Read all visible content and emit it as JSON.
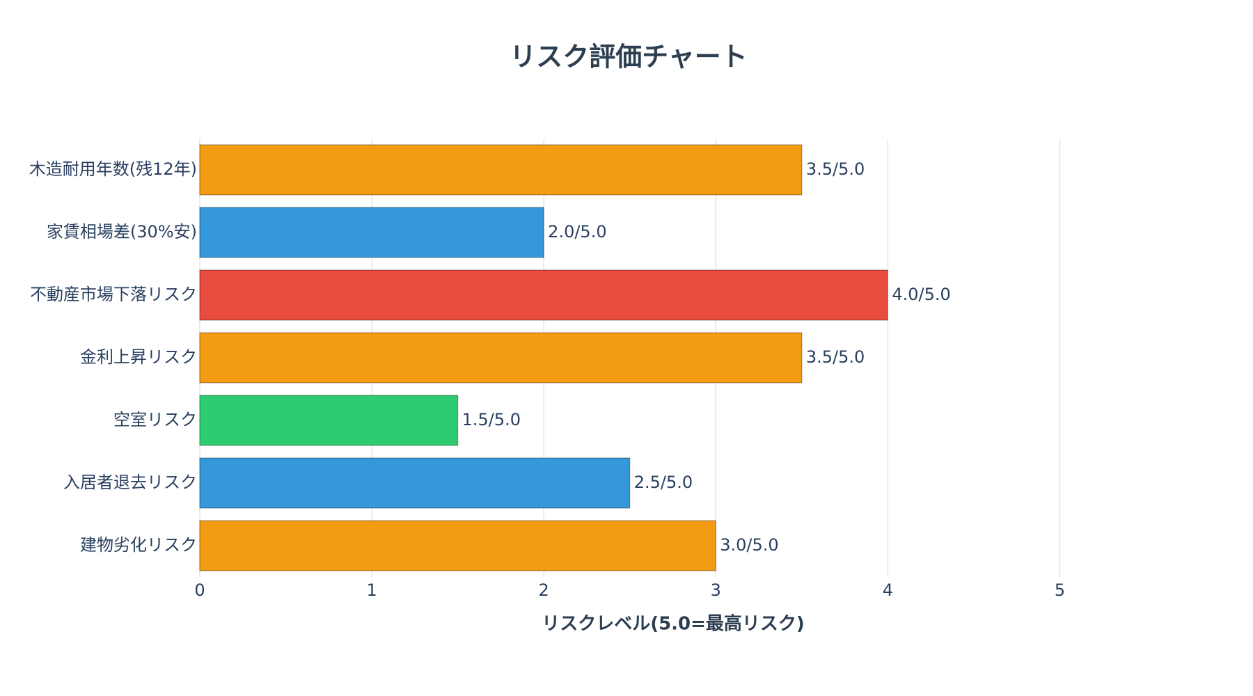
{
  "chart_data": {
    "type": "hbar",
    "title": "リスク評価チャート",
    "x_label": "リスクレベル(5.0=最高リスク)",
    "categories": [
      "木造耐用年数(残12年)",
      "家賃相場差(30%安)",
      "不動産市場下落リスク",
      "金利上昇リスク",
      "空室リスク",
      "入居者退去リスク",
      "建物劣化リスク"
    ],
    "values": [
      3.5,
      2.0,
      4.0,
      3.5,
      1.5,
      2.5,
      3.0
    ],
    "value_labels": [
      "3.5/5.0",
      "2.0/5.0",
      "4.0/5.0",
      "3.5/5.0",
      "1.5/5.0",
      "2.5/5.0",
      "3.0/5.0"
    ],
    "colors": [
      "#f39c12",
      "#3498db",
      "#e74c3c",
      "#f39c12",
      "#2ecc71",
      "#3498db",
      "#f39c12"
    ],
    "xlim": [
      0,
      5.5
    ],
    "xticks": [
      0,
      1,
      2,
      3,
      4,
      5
    ],
    "grid": true
  }
}
